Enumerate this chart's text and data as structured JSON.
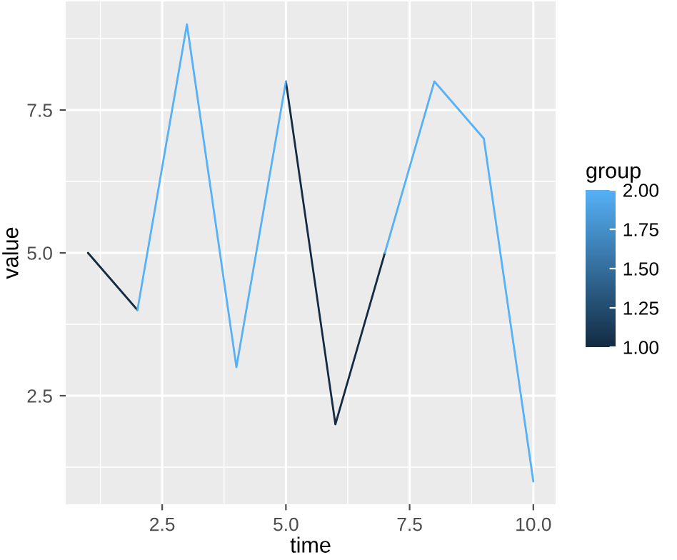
{
  "chart_data": {
    "type": "line",
    "xlabel": "time",
    "ylabel": "value",
    "clabel": "group",
    "x": [
      1,
      2,
      3,
      4,
      5,
      6,
      7,
      8,
      9,
      10
    ],
    "series": [
      {
        "color": "#132b43",
        "values": [
          5,
          4,
          null,
          null,
          8,
          2,
          5,
          null,
          null,
          null
        ]
      },
      {
        "color": "#56b1f7",
        "values": [
          null,
          4,
          9,
          3,
          8,
          null,
          5,
          8,
          7,
          1
        ]
      }
    ],
    "clim": [
      1,
      2
    ],
    "cticks": [
      {
        "value": 1,
        "label": "1.00"
      },
      {
        "value": 1.25,
        "label": "1.25"
      },
      {
        "value": 1.5,
        "label": "1.50"
      },
      {
        "value": 1.75,
        "label": "1.75"
      },
      {
        "value": 2,
        "label": "2.00"
      }
    ],
    "xlim": [
      0.55,
      10.45
    ],
    "ylim": [
      0.6,
      9.4
    ],
    "xticks": [
      2.5,
      {
        "value": 5,
        "label": "5.0"
      },
      7.5,
      {
        "value": 10,
        "label": "10.0"
      }
    ],
    "yticks": [
      2.5,
      {
        "value": 5,
        "label": "5.0"
      },
      7.5
    ],
    "grid": true
  }
}
